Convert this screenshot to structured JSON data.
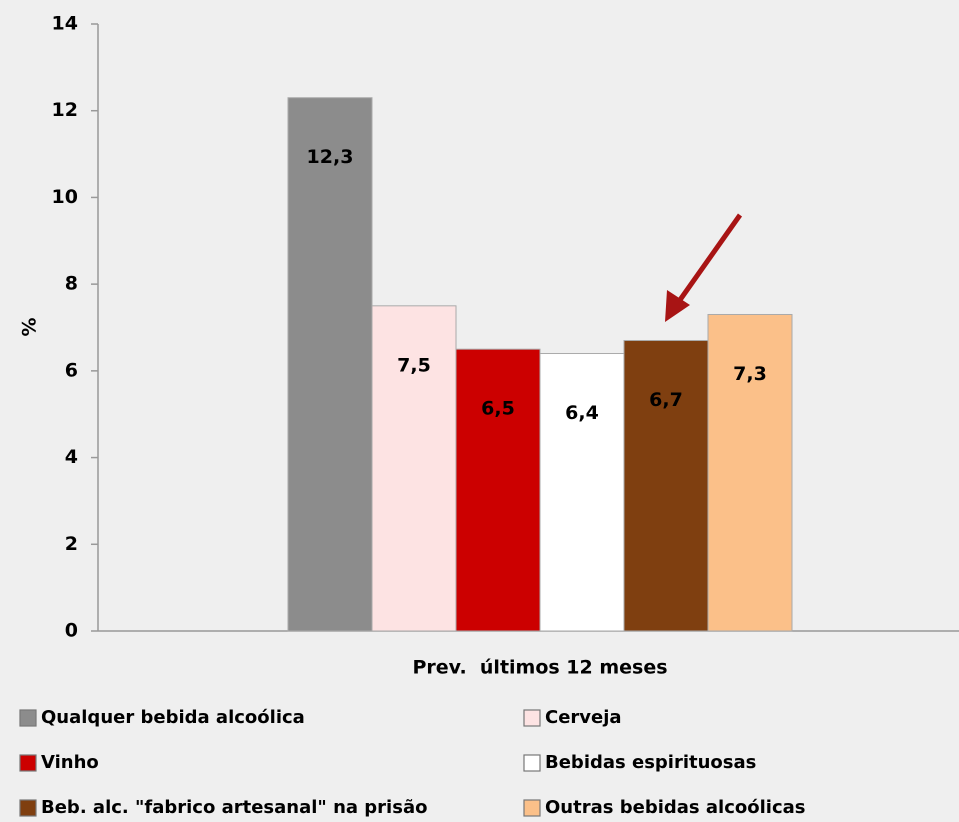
{
  "chart_data": {
    "type": "bar",
    "categories": [
      "Prev.  últimos 12 meses"
    ],
    "ylabel": "%",
    "ylim": [
      0,
      14
    ],
    "yticks": [
      0,
      2,
      4,
      6,
      8,
      10,
      12,
      14
    ],
    "series": [
      {
        "name": "Qualquer bebida alcoólica",
        "color": "#8c8c8c",
        "label_color": "#000000",
        "values": [
          12.3
        ],
        "value_labels": [
          "12,3"
        ]
      },
      {
        "name": "Cerveja",
        "color": "#fde3e3",
        "label_color": "#000000",
        "values": [
          7.5
        ],
        "value_labels": [
          "7,5"
        ]
      },
      {
        "name": "Vinho",
        "color": "#cc0000",
        "label_color": "#ffffff",
        "values": [
          6.5
        ],
        "value_labels": [
          "6,5"
        ]
      },
      {
        "name": "Bebidas espirituosas",
        "color": "#ffffff",
        "label_color": "#000000",
        "values": [
          6.4
        ],
        "value_labels": [
          "6,4"
        ]
      },
      {
        "name": "Beb. alc. \"fabrico artesanal\" na prisão",
        "color": "#7f3f10",
        "label_color": "#ffffff",
        "values": [
          6.7
        ],
        "value_labels": [
          "6,7"
        ]
      },
      {
        "name": "Outras bebidas alcoólicas",
        "color": "#fbc089",
        "label_color": "#000000",
        "values": [
          7.3
        ],
        "value_labels": [
          "7,3"
        ]
      }
    ]
  }
}
